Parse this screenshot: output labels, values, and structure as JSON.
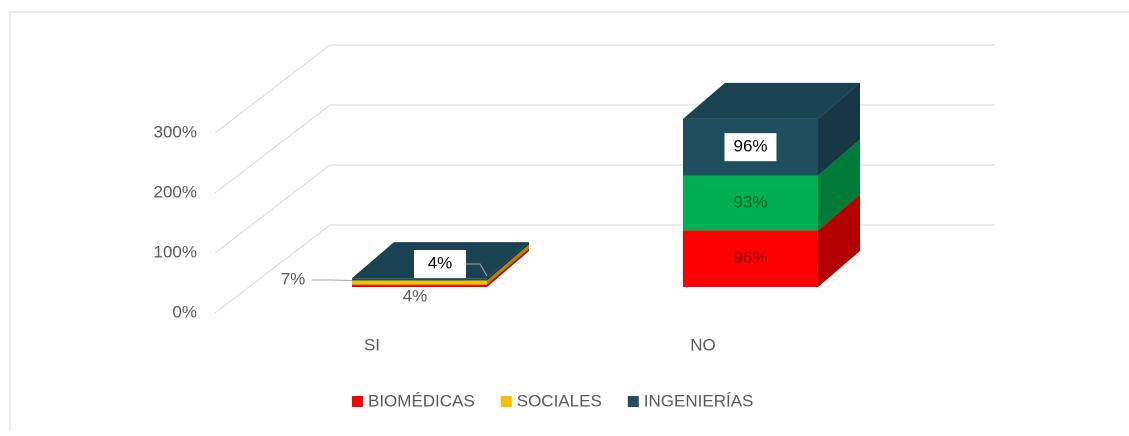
{
  "chart_data": {
    "type": "bar3d_stacked",
    "categories": [
      "SI",
      "NO"
    ],
    "series": [
      {
        "name": "BIOMÉDICAS",
        "color": "#ff0000",
        "values": [
          4,
          96
        ],
        "value_labels": [
          "4%",
          "96%"
        ]
      },
      {
        "name": "SOCIALES",
        "color": "#f2c200",
        "colors": [
          "#f2c200",
          "#00b050"
        ],
        "values": [
          7,
          93
        ],
        "value_labels": [
          "7%",
          "93%"
        ]
      },
      {
        "name": "INGENIERÍAS",
        "color": "#1f4e5f",
        "values": [
          4,
          96
        ],
        "value_labels": [
          "4%",
          "96%"
        ]
      }
    ],
    "ylim": [
      0,
      300
    ],
    "yticks": [
      {
        "value": 0,
        "label": "0%"
      },
      {
        "value": 100,
        "label": "100%"
      },
      {
        "value": 200,
        "label": "200%"
      },
      {
        "value": 300,
        "label": "300%"
      }
    ],
    "grid": true,
    "legend": "bottom"
  }
}
